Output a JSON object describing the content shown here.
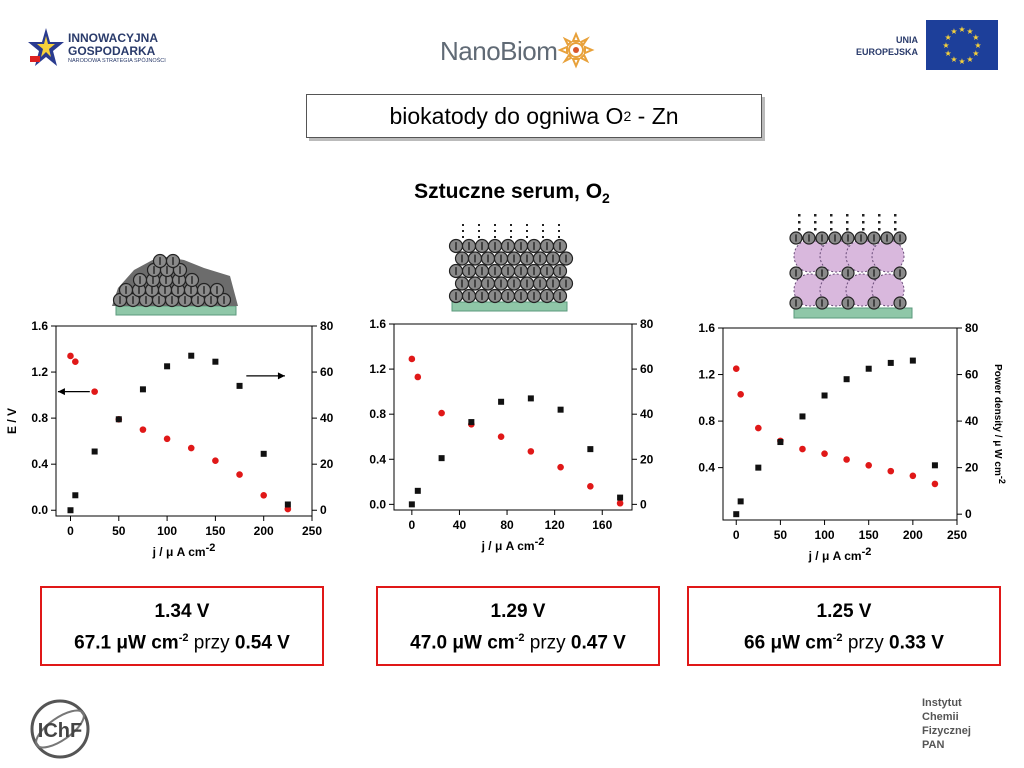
{
  "header": {
    "ig_line1": "INNOWACYJNA",
    "ig_line2": "GOSPODARKA",
    "ig_line3": "NARODOWA STRATEGIA SPÓJNOŚCI",
    "nano_part1": "Nano",
    "nano_part2": "Biom",
    "eu_line1": "UNIA",
    "eu_line2": "EUROPEJSKA"
  },
  "title": {
    "text": "biokatody do ogniwa O",
    "sub": "2",
    "tail": " - Zn"
  },
  "subtitle": {
    "text": "Sztuczne serum, O",
    "sub": "2"
  },
  "colors": {
    "red": "#e01818",
    "black": "#111111",
    "electrode": "#8fc7a8"
  },
  "chart_data": [
    {
      "type": "scatter",
      "xlabel": "j / μ A cm",
      "xlabel_sup": "-2",
      "ylabel": "E / V",
      "y2label": "",
      "xlim": [
        -15,
        250
      ],
      "ylim": [
        -0.05,
        1.6
      ],
      "y2lim": [
        0,
        80
      ],
      "xticks": [
        0,
        50,
        100,
        150,
        200,
        250
      ],
      "yticks": [
        "0.0",
        "0.4",
        "0.8",
        "1.2",
        "1.6"
      ],
      "y2ticks": [
        "0",
        "20",
        "40",
        "60",
        "80"
      ],
      "arrows": true,
      "series": [
        {
          "axis": "left",
          "color": "red",
          "marker": "circle",
          "x": [
            0,
            5,
            25,
            50,
            75,
            100,
            125,
            150,
            175,
            200,
            225
          ],
          "y": [
            1.34,
            1.29,
            1.03,
            0.79,
            0.7,
            0.62,
            0.54,
            0.43,
            0.31,
            0.13,
            0.01
          ]
        },
        {
          "axis": "right",
          "color": "black",
          "marker": "square",
          "x": [
            0,
            5,
            25,
            50,
            75,
            100,
            125,
            150,
            175,
            200,
            225
          ],
          "y": [
            0,
            6.5,
            25.5,
            39.5,
            52.5,
            62.5,
            67.1,
            64.5,
            54,
            24.5,
            2.5
          ]
        }
      ]
    },
    {
      "type": "scatter",
      "xlabel": "j / μ A cm",
      "xlabel_sup": "-2",
      "ylabel": "",
      "y2label": "",
      "xlim": [
        -15,
        185
      ],
      "ylim": [
        -0.05,
        1.6
      ],
      "y2lim": [
        0,
        80
      ],
      "xticks": [
        0,
        40,
        80,
        120,
        160
      ],
      "yticks": [
        "0.0",
        "0.4",
        "0.8",
        "1.2",
        "1.6"
      ],
      "y2ticks": [
        "0",
        "20",
        "40",
        "60",
        "80"
      ],
      "arrows": false,
      "series": [
        {
          "axis": "left",
          "color": "red",
          "marker": "circle",
          "x": [
            0,
            5,
            25,
            50,
            75,
            100,
            125,
            150,
            175
          ],
          "y": [
            1.29,
            1.13,
            0.81,
            0.71,
            0.6,
            0.47,
            0.33,
            0.16,
            0.01
          ]
        },
        {
          "axis": "right",
          "color": "black",
          "marker": "square",
          "x": [
            0,
            5,
            25,
            50,
            75,
            100,
            125,
            150,
            175
          ],
          "y": [
            0,
            6,
            20.5,
            36.5,
            45.5,
            47,
            42,
            24.5,
            3
          ]
        }
      ]
    },
    {
      "type": "scatter",
      "xlabel": "j / μ A cm",
      "xlabel_sup": "-2",
      "ylabel": "",
      "y2label": "Power density / μ W cm",
      "y2label_sup": "-2",
      "xlim": [
        -15,
        250
      ],
      "ylim": [
        -0.05,
        1.6
      ],
      "y2lim": [
        0,
        80
      ],
      "xticks": [
        0,
        50,
        100,
        150,
        200,
        250
      ],
      "yticks": [
        "0.4",
        "0.8",
        "1.2",
        "1.6"
      ],
      "y2ticks": [
        "0",
        "20",
        "40",
        "60",
        "80"
      ],
      "arrows": false,
      "series": [
        {
          "axis": "left",
          "color": "red",
          "marker": "circle",
          "x": [
            0,
            5,
            25,
            50,
            75,
            100,
            125,
            150,
            175,
            200,
            225
          ],
          "y": [
            1.25,
            1.03,
            0.74,
            0.63,
            0.56,
            0.52,
            0.47,
            0.42,
            0.37,
            0.33,
            0.26
          ]
        },
        {
          "axis": "right",
          "color": "black",
          "marker": "square",
          "x": [
            0,
            5,
            25,
            50,
            75,
            100,
            125,
            150,
            175,
            200,
            225
          ],
          "y": [
            0,
            5.5,
            20,
            31,
            42,
            51,
            58,
            62.5,
            65,
            66,
            21
          ]
        }
      ]
    }
  ],
  "results": [
    {
      "v": "1.34 V",
      "p": "67.1 μW cm",
      "sup": "-2",
      "przy": " przy ",
      "e": "0.54 V"
    },
    {
      "v": "1.29 V",
      "p": "47.0 μW cm",
      "sup": "-2",
      "przy": " przy ",
      "e": "0.47 V"
    },
    {
      "v": "1.25 V",
      "p": "66 μW cm",
      "sup": "-2",
      "przy": " przy ",
      "e": "0.33 V"
    }
  ],
  "footer": {
    "logo_text": "IChF",
    "inst_lines": [
      "Instytut",
      "Chemii",
      "Fizycznej",
      "PAN"
    ]
  }
}
